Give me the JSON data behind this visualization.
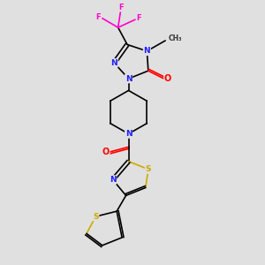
{
  "background_color": "#e0e0e0",
  "bond_color": "#000000",
  "bond_lw": 1.2,
  "atom_colors": {
    "N": "#2020ff",
    "O": "#ff0000",
    "S": "#ccaa00",
    "F": "#ff00cc",
    "C": "#000000"
  },
  "figsize": [
    3.0,
    3.0
  ],
  "dpi": 100
}
